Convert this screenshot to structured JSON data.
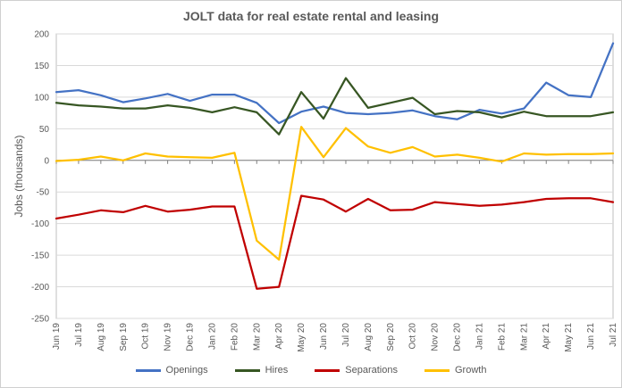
{
  "chart_data": {
    "type": "line",
    "title": "JOLT data for real estate rental and leasing",
    "xlabel": "",
    "ylabel": "Jobs (thousands)",
    "ylim": [
      -250,
      200
    ],
    "yticks": [
      200,
      150,
      100,
      50,
      0,
      -50,
      -100,
      -150,
      -200,
      -250
    ],
    "grid": true,
    "legend_position": "bottom",
    "x_labels": [
      "Jun 19",
      "Jul 19",
      "Aug 19",
      "Sep 19",
      "Oct 19",
      "Nov 19",
      "Dec 19",
      "Jan 20",
      "Feb 20",
      "Mar 20",
      "Apr 20",
      "May 20",
      "Jun 20",
      "Jul 20",
      "Aug 20",
      "Sep 20",
      "Oct 20",
      "Nov 20",
      "Dec 20",
      "Jan 21",
      "Feb 21",
      "Mar 21",
      "Apr 21",
      "May 21",
      "Jun 21",
      "Jul 21"
    ],
    "series": [
      {
        "name": "Openings",
        "color": "#4472c4",
        "values": [
          108,
          111,
          103,
          92,
          98,
          105,
          94,
          104,
          104,
          91,
          59,
          77,
          85,
          75,
          73,
          75,
          79,
          70,
          65,
          80,
          74,
          82,
          123,
          103,
          100,
          185
        ]
      },
      {
        "name": "Hires",
        "color": "#375623",
        "values": [
          91,
          87,
          85,
          82,
          82,
          87,
          83,
          76,
          84,
          76,
          41,
          108,
          66,
          130,
          83,
          91,
          99,
          73,
          78,
          76,
          68,
          77,
          70,
          70,
          70,
          76
        ]
      },
      {
        "name": "Separations",
        "color": "#c00000",
        "values": [
          -92,
          -86,
          -79,
          -82,
          -72,
          -81,
          -78,
          -73,
          -73,
          -203,
          -200,
          -56,
          -62,
          -81,
          -61,
          -79,
          -78,
          -66,
          -69,
          -72,
          -70,
          -66,
          -61,
          -60,
          -60,
          -66
        ]
      },
      {
        "name": "Growth",
        "color": "#ffc000",
        "values": [
          -1,
          1,
          6,
          0,
          11,
          6,
          5,
          4,
          12,
          -127,
          -157,
          53,
          5,
          51,
          22,
          12,
          21,
          6,
          9,
          4,
          -2,
          11,
          9,
          10,
          10,
          11
        ]
      }
    ]
  }
}
